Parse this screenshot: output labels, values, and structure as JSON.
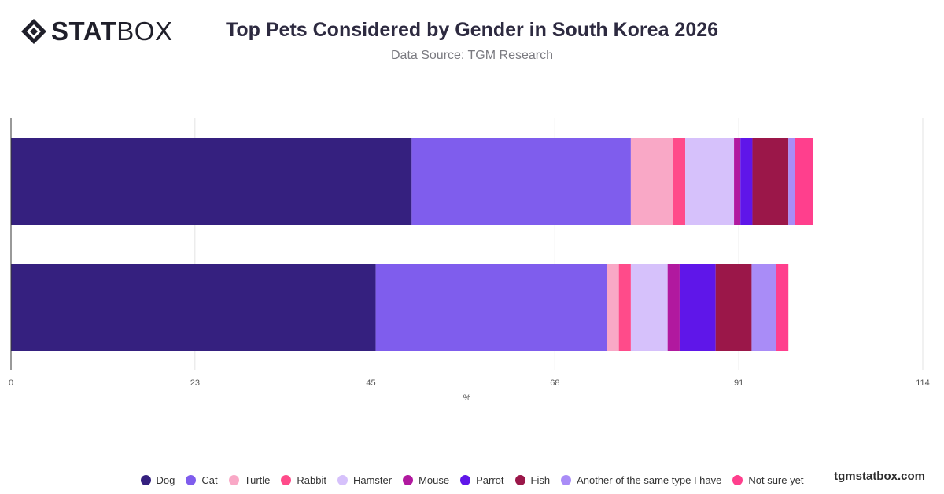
{
  "header": {
    "logo_text_bold": "STAT",
    "logo_text_light": "BOX",
    "title": "Top Pets Considered by Gender in South Korea 2026",
    "subtitle": "Data Source: TGM Research"
  },
  "watermark": "tgmstatbox.com",
  "chart_data": {
    "type": "bar",
    "orientation": "horizontal",
    "stacked": true,
    "title": "Top Pets Considered by Gender in South Korea 2026",
    "subtitle": "Data Source: TGM Research",
    "xlabel": "%",
    "ylabel": "",
    "categories": [
      "",
      ""
    ],
    "xlim": [
      0,
      114
    ],
    "xticks": [
      0,
      23,
      45,
      68,
      91,
      114
    ],
    "grid": true,
    "legend_position": "bottom",
    "series": [
      {
        "name": "Dog",
        "color": "#35207f",
        "values": [
          50.1,
          45.6
        ]
      },
      {
        "name": "Cat",
        "color": "#7f5ded",
        "values": [
          27.4,
          28.9
        ]
      },
      {
        "name": "Turtle",
        "color": "#f9a8c6",
        "values": [
          5.3,
          1.5
        ]
      },
      {
        "name": "Rabbit",
        "color": "#ff4b8a",
        "values": [
          1.5,
          1.5
        ]
      },
      {
        "name": "Hamster",
        "color": "#d6c1fb",
        "values": [
          6.1,
          4.6
        ]
      },
      {
        "name": "Mouse",
        "color": "#b1199f",
        "values": [
          0.8,
          1.5
        ]
      },
      {
        "name": "Parrot",
        "color": "#5f16e9",
        "values": [
          1.5,
          4.5
        ]
      },
      {
        "name": "Fish",
        "color": "#9b1749",
        "values": [
          4.5,
          4.5
        ]
      },
      {
        "name": "Another of the same type I have",
        "color": "#a98cf7",
        "values": [
          0.8,
          3.1
        ]
      },
      {
        "name": "Not sure yet",
        "color": "#ff3f8d",
        "values": [
          2.3,
          1.5
        ]
      }
    ]
  }
}
